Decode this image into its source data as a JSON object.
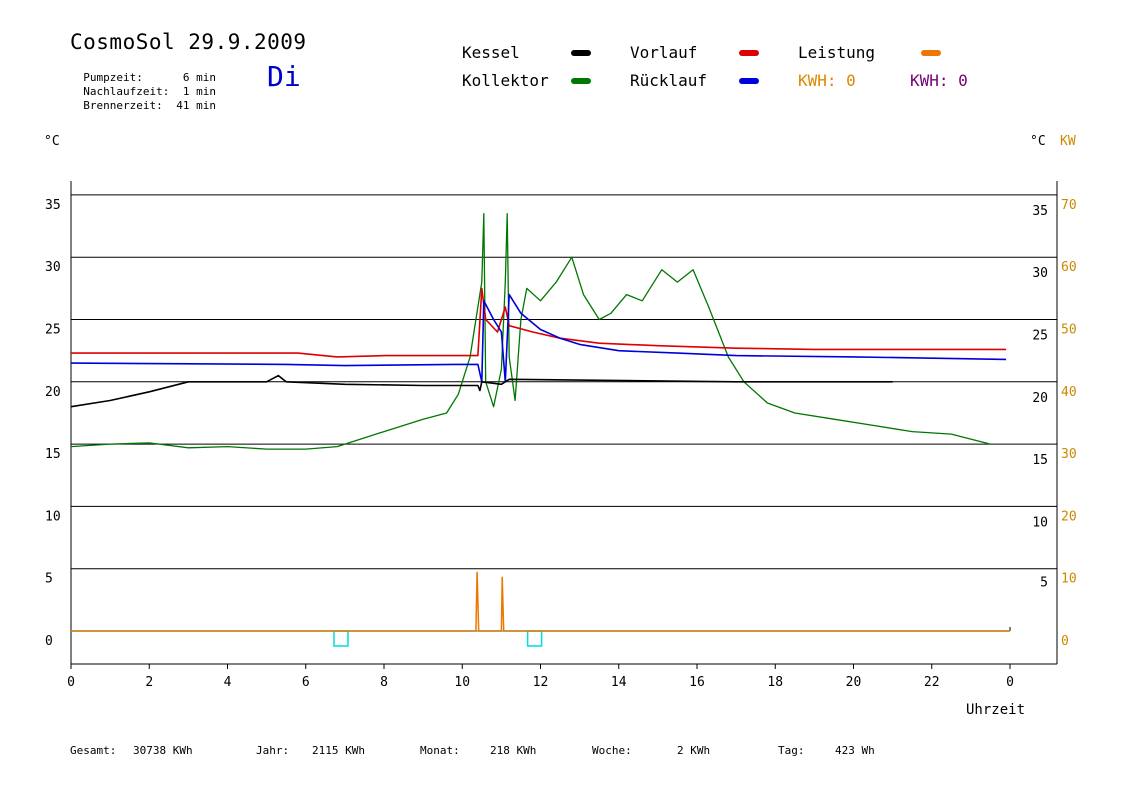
{
  "header": {
    "title": "CosmoSol 29.9.2009",
    "weekday": "Di",
    "info": [
      {
        "label": "Pumpzeit:",
        "value": "6 min"
      },
      {
        "label": "Nachlaufzeit:",
        "value": "1 min"
      },
      {
        "label": "Brennerzeit:",
        "value": "41 min"
      }
    ]
  },
  "legend": {
    "kessel": "Kessel",
    "kollektor": "Kollektor",
    "vorlauf": "Vorlauf",
    "ruecklauf": "Rücklauf",
    "leistung": "Leistung",
    "kwh1": "KWH: 0",
    "kwh2": "KWH: 0"
  },
  "axes": {
    "left_unit": "°C",
    "right_unit_c": "°C",
    "right_unit_kw": "KW",
    "xlabel": "Uhrzeit"
  },
  "footer": [
    {
      "label": "Gesamt:",
      "value": "30738 KWh"
    },
    {
      "label": "Jahr:",
      "value": "2115 KWh"
    },
    {
      "label": "Monat:",
      "value": "218 KWh"
    },
    {
      "label": "Woche:",
      "value": "2 KWh"
    },
    {
      "label": "Tag:",
      "value": "423 Wh"
    }
  ],
  "colors": {
    "kessel": "#000000",
    "kollektor": "#007700",
    "vorlauf": "#dd0000",
    "ruecklauf": "#0000dd",
    "leistung": "#ee7700",
    "kwh2": "#770077",
    "zero_line": "#00dddd",
    "kw_axis": "#cc8800"
  },
  "chart_data": {
    "type": "line",
    "xlim": [
      0,
      24
    ],
    "ylim": [
      0,
      35
    ],
    "ylim_kw": [
      0,
      70
    ],
    "x_ticks": [
      "0",
      "2",
      "4",
      "6",
      "8",
      "10",
      "12",
      "14",
      "16",
      "18",
      "20",
      "22",
      "0"
    ],
    "y_ticks_left": [
      "0",
      "5",
      "10",
      "15",
      "20",
      "25",
      "30",
      "35"
    ],
    "y_ticks_right_c": [
      "5",
      "10",
      "15",
      "20",
      "25",
      "30",
      "35"
    ],
    "y_ticks_right_kw": [
      "0",
      "10",
      "20",
      "30",
      "40",
      "50",
      "60",
      "70"
    ],
    "grid": true,
    "series": [
      {
        "name": "Kollektor",
        "color": "#007700",
        "points": [
          [
            0,
            14.8
          ],
          [
            1,
            15
          ],
          [
            2,
            15.1
          ],
          [
            3,
            14.7
          ],
          [
            4,
            14.8
          ],
          [
            5,
            14.6
          ],
          [
            6,
            14.6
          ],
          [
            6.8,
            14.8
          ],
          [
            7.3,
            15.3
          ],
          [
            8,
            16
          ],
          [
            9,
            17
          ],
          [
            9.6,
            17.5
          ],
          [
            9.9,
            19
          ],
          [
            10.2,
            22
          ],
          [
            10.35,
            25
          ],
          [
            10.5,
            28
          ],
          [
            10.55,
            33.5
          ],
          [
            10.6,
            20
          ],
          [
            10.8,
            18
          ],
          [
            11.0,
            21
          ],
          [
            11.1,
            28
          ],
          [
            11.15,
            33.5
          ],
          [
            11.2,
            22
          ],
          [
            11.35,
            18.5
          ],
          [
            11.5,
            25
          ],
          [
            11.65,
            27.5
          ],
          [
            12,
            26.5
          ],
          [
            12.4,
            28
          ],
          [
            12.8,
            30
          ],
          [
            13.1,
            27
          ],
          [
            13.5,
            25
          ],
          [
            13.8,
            25.5
          ],
          [
            14.2,
            27
          ],
          [
            14.6,
            26.5
          ],
          [
            15.1,
            29
          ],
          [
            15.5,
            28
          ],
          [
            15.9,
            29
          ],
          [
            16.3,
            26
          ],
          [
            16.8,
            22
          ],
          [
            17.2,
            20
          ],
          [
            17.8,
            18.3
          ],
          [
            18.5,
            17.5
          ],
          [
            19.5,
            17
          ],
          [
            20.5,
            16.5
          ],
          [
            21.5,
            16
          ],
          [
            22.5,
            15.8
          ],
          [
            23.5,
            15
          ]
        ]
      },
      {
        "name": "Vorlauf",
        "color": "#dd0000",
        "points": [
          [
            0,
            22.3
          ],
          [
            5.8,
            22.3
          ],
          [
            6.8,
            22
          ],
          [
            8,
            22.1
          ],
          [
            9.9,
            22.1
          ],
          [
            10.4,
            22.1
          ],
          [
            10.5,
            27.5
          ],
          [
            10.6,
            25
          ],
          [
            10.9,
            24
          ],
          [
            11.1,
            26
          ],
          [
            11.2,
            24.5
          ],
          [
            11.8,
            24
          ],
          [
            12.5,
            23.5
          ],
          [
            13.5,
            23.1
          ],
          [
            15,
            22.9
          ],
          [
            17,
            22.7
          ],
          [
            19,
            22.6
          ],
          [
            21,
            22.6
          ],
          [
            23.9,
            22.6
          ]
        ]
      },
      {
        "name": "Rücklauf",
        "color": "#0000dd",
        "points": [
          [
            0,
            21.5
          ],
          [
            5.5,
            21.4
          ],
          [
            7,
            21.3
          ],
          [
            9.8,
            21.4
          ],
          [
            10.4,
            21.4
          ],
          [
            10.5,
            20
          ],
          [
            10.55,
            26.5
          ],
          [
            10.8,
            25
          ],
          [
            11.0,
            24
          ],
          [
            11.1,
            20
          ],
          [
            11.2,
            27
          ],
          [
            11.5,
            25.5
          ],
          [
            12,
            24.2
          ],
          [
            12.5,
            23.5
          ],
          [
            13,
            23
          ],
          [
            14,
            22.5
          ],
          [
            15.5,
            22.3
          ],
          [
            17,
            22.1
          ],
          [
            20,
            22
          ],
          [
            23.9,
            21.8
          ]
        ]
      },
      {
        "name": "Kessel",
        "color": "#000000",
        "points": [
          [
            0,
            18
          ],
          [
            1,
            18.5
          ],
          [
            2,
            19.2
          ],
          [
            3,
            20
          ],
          [
            5,
            20
          ],
          [
            5.3,
            20.5
          ],
          [
            5.5,
            20
          ],
          [
            7,
            19.8
          ],
          [
            9,
            19.7
          ],
          [
            10.4,
            19.7
          ],
          [
            10.45,
            19.3
          ],
          [
            10.5,
            20
          ],
          [
            11.0,
            19.8
          ],
          [
            11.2,
            20.2
          ],
          [
            17,
            20
          ],
          [
            19,
            20
          ],
          [
            21,
            20
          ]
        ]
      }
    ],
    "power_series": {
      "name": "Leistung",
      "color": "#ee7700",
      "points": [
        [
          0,
          0
        ],
        [
          10.35,
          0
        ],
        [
          10.38,
          9.5
        ],
        [
          10.42,
          0
        ],
        [
          11.0,
          0
        ],
        [
          11.02,
          8.7
        ],
        [
          11.06,
          0
        ],
        [
          24,
          0
        ]
      ]
    },
    "markers_x": [
      6.9,
      11.85
    ]
  }
}
